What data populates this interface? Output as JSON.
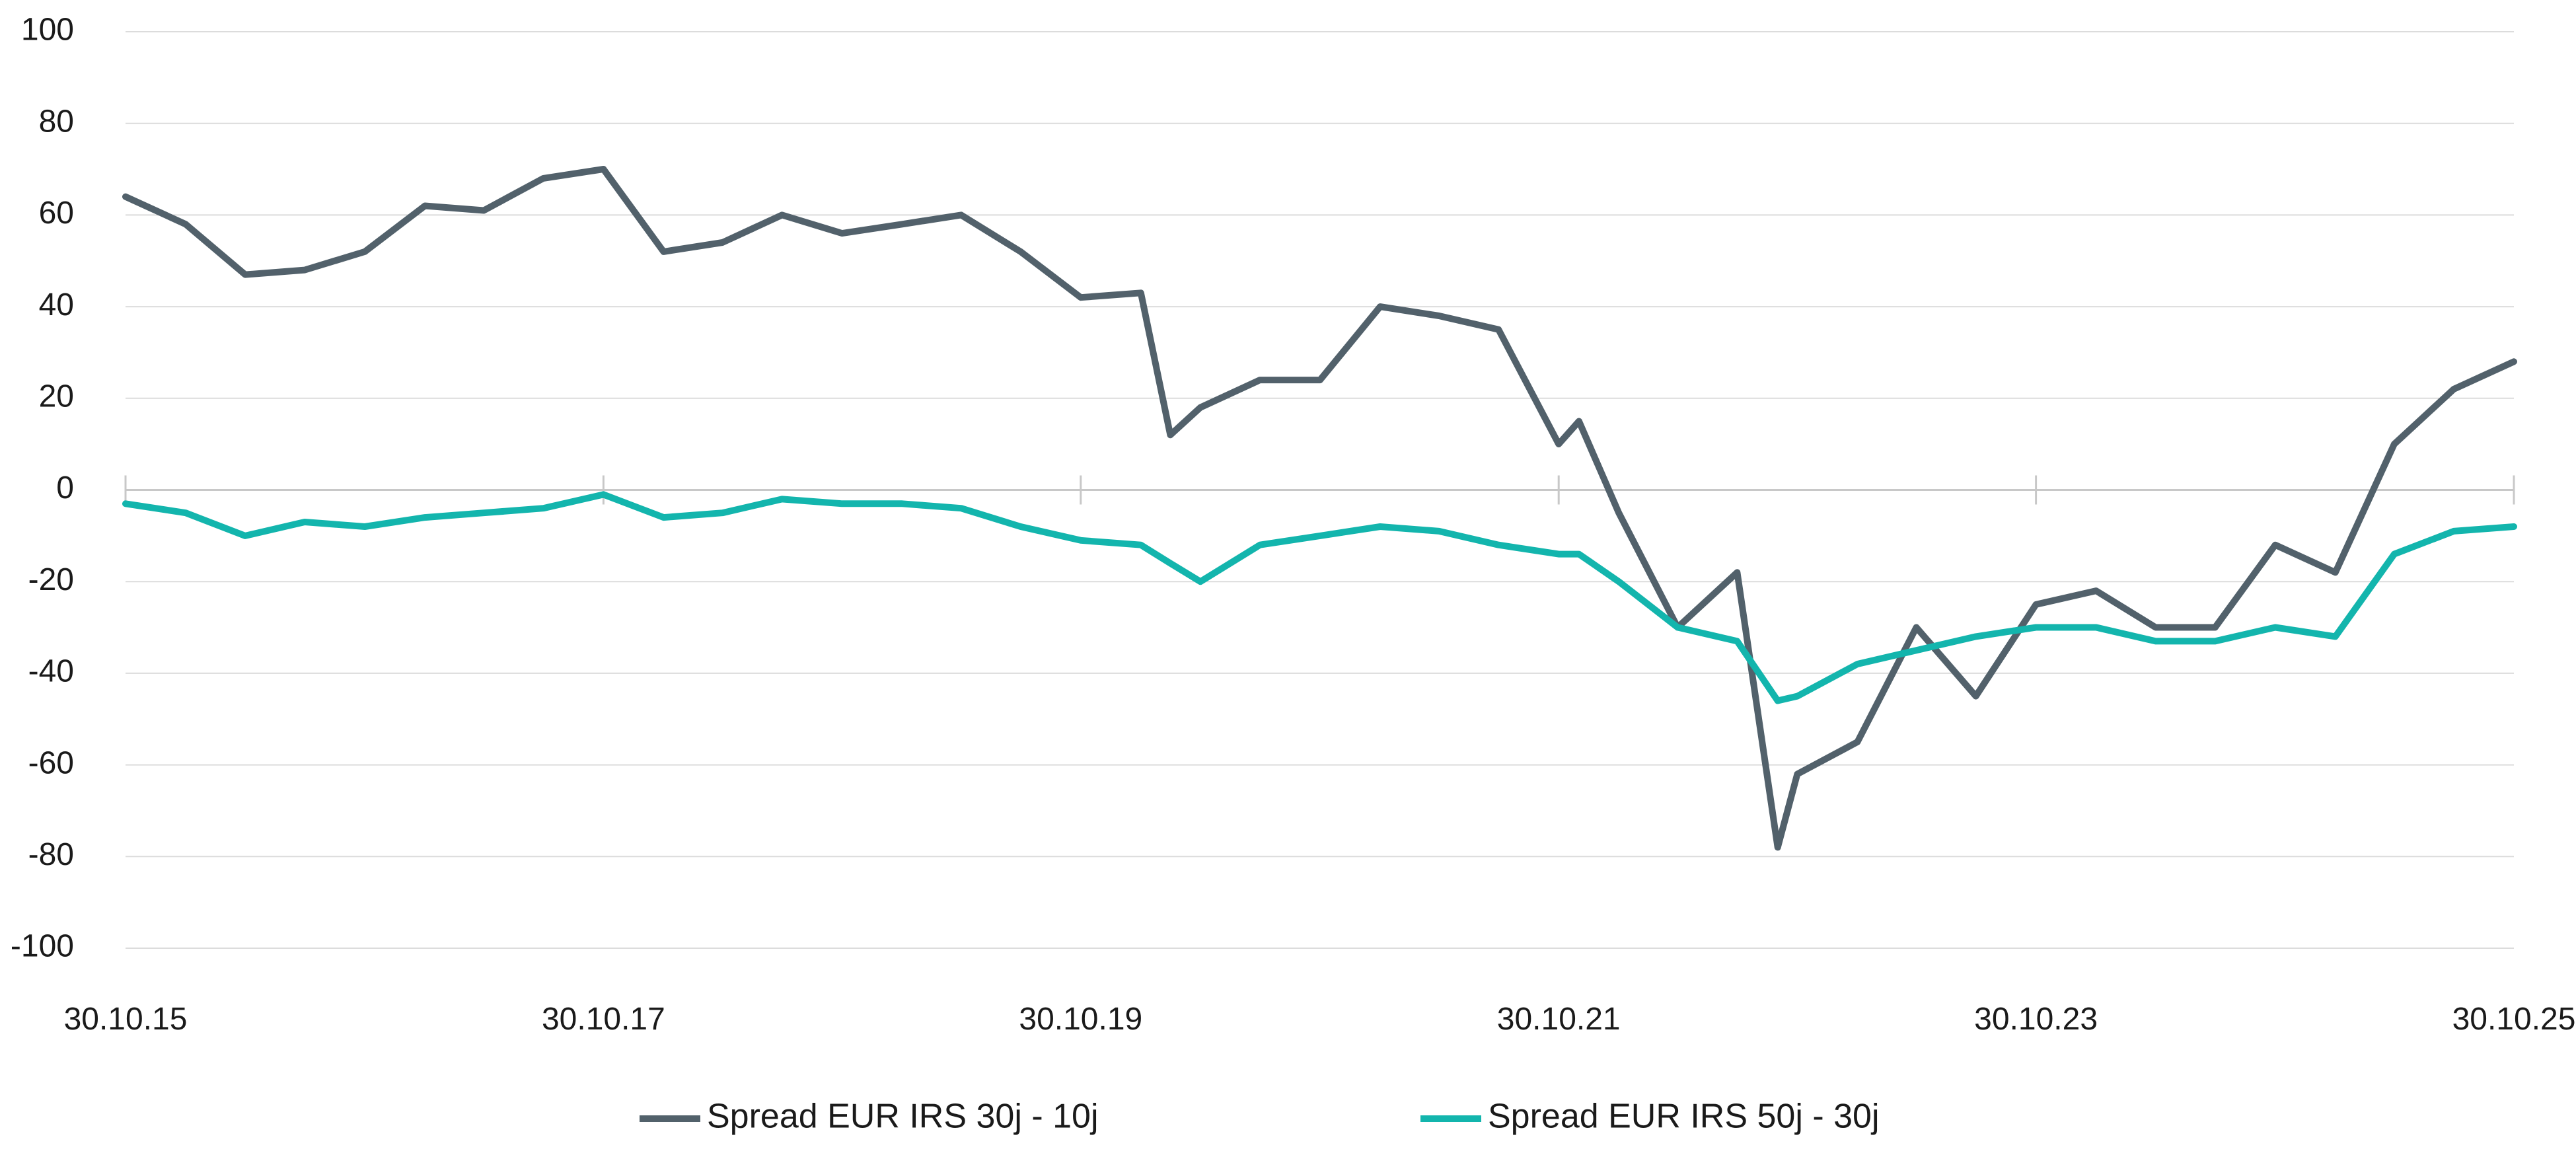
{
  "chart_data": {
    "type": "line",
    "title": "",
    "xlabel": "",
    "ylabel": "",
    "ylim": [
      -100,
      100
    ],
    "yticks": [
      "100",
      "80",
      "60",
      "40",
      "20",
      "0",
      "-20",
      "-40",
      "-60",
      "-80",
      "-100"
    ],
    "xticks": [
      "30.10.15",
      "30.10.17",
      "30.10.19",
      "30.10.21",
      "30.10.23",
      "30.10.25"
    ],
    "grid": true,
    "legend_position": "bottom-center",
    "x": [
      "30.10.15",
      "30.01.16",
      "30.04.16",
      "30.07.16",
      "30.10.16",
      "30.01.17",
      "30.04.17",
      "30.07.17",
      "30.10.17",
      "30.01.18",
      "30.04.18",
      "30.07.18",
      "30.10.18",
      "30.01.19",
      "30.04.19",
      "30.07.19",
      "30.10.19",
      "30.01.20",
      "15.03.20",
      "30.04.20",
      "30.07.20",
      "30.10.20",
      "30.01.21",
      "30.04.21",
      "30.07.21",
      "30.10.21",
      "30.11.21",
      "30.01.22",
      "30.04.22",
      "30.07.22",
      "30.09.22",
      "30.10.22",
      "30.01.23",
      "30.04.23",
      "30.07.23",
      "30.10.23",
      "30.01.24",
      "30.04.24",
      "30.07.24",
      "30.10.24",
      "30.01.25",
      "30.04.25",
      "30.07.25",
      "30.10.25"
    ],
    "series": [
      {
        "name": "Spread EUR IRS 30j - 10j",
        "color": "#52616b",
        "values": [
          64,
          58,
          47,
          48,
          52,
          62,
          61,
          68,
          70,
          52,
          54,
          60,
          56,
          58,
          60,
          52,
          42,
          43,
          12,
          18,
          24,
          24,
          40,
          38,
          35,
          10,
          15,
          -5,
          -30,
          -18,
          -78,
          -62,
          -55,
          -30,
          -45,
          -25,
          -22,
          -30,
          -30,
          -12,
          -18,
          10,
          22,
          28
        ]
      },
      {
        "name": "Spread EUR IRS 50j - 30j",
        "color": "#13b5ad",
        "values": [
          -3,
          -5,
          -10,
          -7,
          -8,
          -6,
          -5,
          -4,
          -1,
          -6,
          -5,
          -2,
          -3,
          -3,
          -4,
          -8,
          -11,
          -12,
          -16,
          -20,
          -12,
          -10,
          -8,
          -9,
          -12,
          -14,
          -14,
          -20,
          -30,
          -33,
          -46,
          -45,
          -38,
          -35,
          -32,
          -30,
          -30,
          -33,
          -33,
          -30,
          -32,
          -14,
          -9,
          -8
        ]
      }
    ]
  }
}
